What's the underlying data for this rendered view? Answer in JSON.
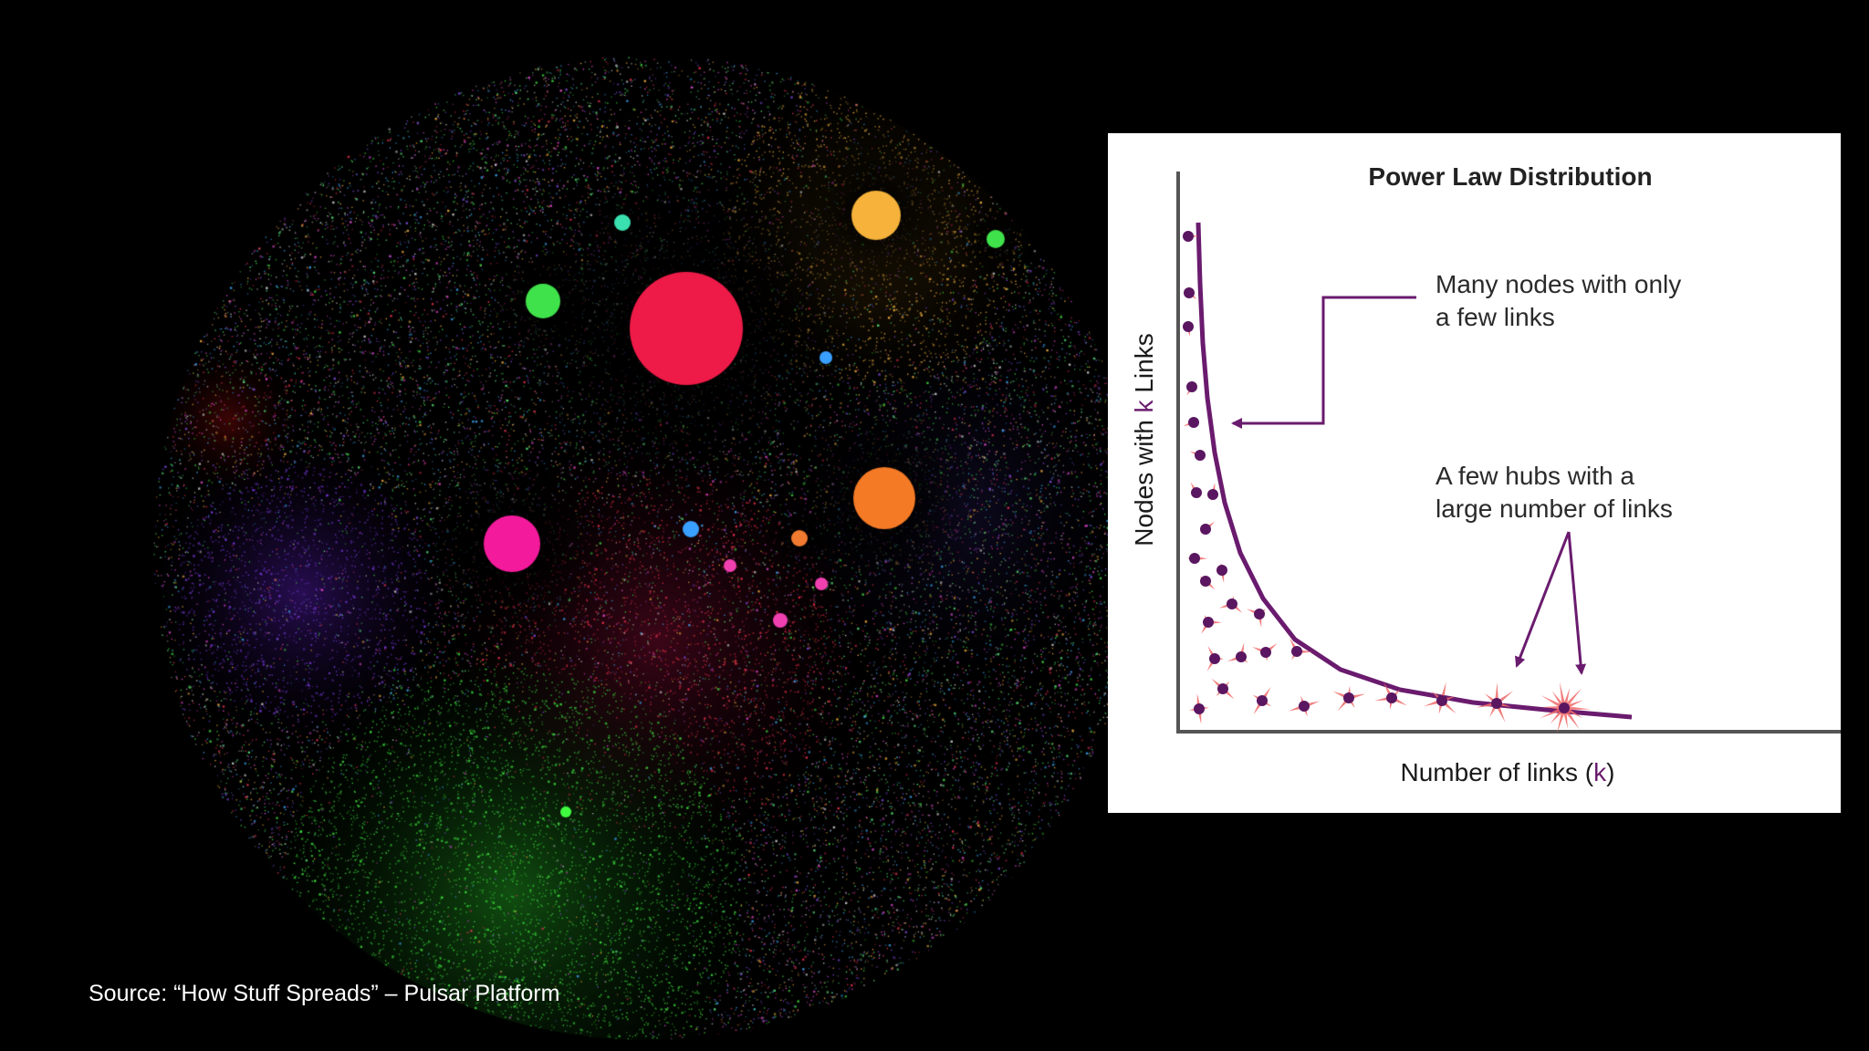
{
  "source": "Source: “How Stuff Spreads” – Pulsar Platform",
  "diagram": {
    "title": "Power Law Distribution",
    "annotation_many": [
      "Many nodes with only",
      "a few links"
    ],
    "annotation_hubs": [
      "A few hubs with a",
      "large number of links"
    ],
    "x_axis": {
      "prefix": "Number of links (",
      "k": "k",
      "suffix": ")"
    },
    "y_axis": {
      "prefix": "Nodes with ",
      "k": "k",
      "suffix": " Links"
    }
  },
  "colors": {
    "background": "#000000",
    "panel": "#ffffff",
    "curve": "#6a1b6e",
    "node": "#5a1660",
    "spike": "#f06a6a",
    "axis": "#555555",
    "hub_red": "#ee1a48",
    "hub_orange": "#f47a25",
    "hub_magenta": "#f41a9c",
    "hub_yellow": "#f6b23a",
    "hub_green": "#3fe24a",
    "cluster_green": "#2fcf2f",
    "cluster_purple": "#5a1fb0"
  }
}
